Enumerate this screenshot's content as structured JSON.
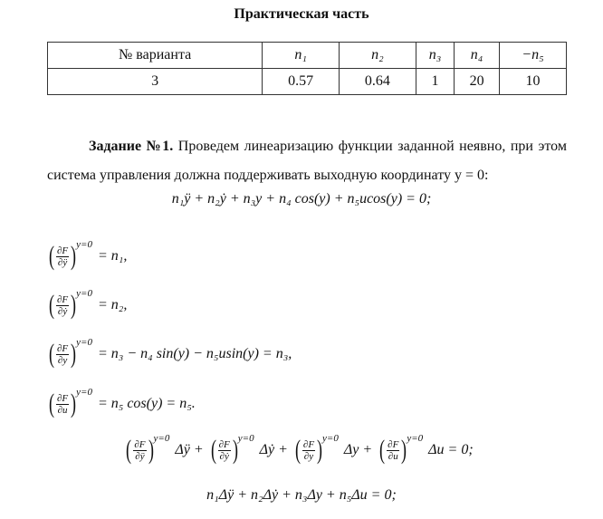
{
  "title": "Практическая часть",
  "table": {
    "headers": [
      "№ варианта",
      "n₁",
      "n₂",
      "n₃",
      "n₄",
      "−n₅"
    ],
    "rows": [
      [
        "3",
        "0.57",
        "0.64",
        "1",
        "20",
        "10"
      ]
    ]
  },
  "task": {
    "label": "Задание №1.",
    "text": " Проведем линеаризацию функции заданной неявно, при этом система управления должна поддерживать выходную координату y = 0:"
  },
  "equation_main": "n₁ÿ + n₂ẏ + n₃y + n₄ cos(y) + n₅ucos(y) = 0;",
  "derivatives": [
    {
      "num": "∂F",
      "den": "∂ÿ",
      "sup": "y=0",
      "rhs": "= n₁,"
    },
    {
      "num": "∂F",
      "den": "∂ẏ",
      "sup": "y=0",
      "rhs": "= n₂,"
    },
    {
      "num": "∂F",
      "den": "∂y",
      "sup": "y=0",
      "rhs": "= n₃ − n₄ sin(y) − n₅usin(y) = n₃,"
    },
    {
      "num": "∂F",
      "den": "∂u",
      "sup": "y=0",
      "rhs": "= n₅ cos(y) = n₅."
    }
  ],
  "linearized_terms": [
    "Δÿ +",
    "Δẏ +",
    "Δy +",
    "Δu = 0;"
  ],
  "equation_final": "n₁Δÿ + n₂Δẏ + n₃Δy + n₅Δu = 0;"
}
